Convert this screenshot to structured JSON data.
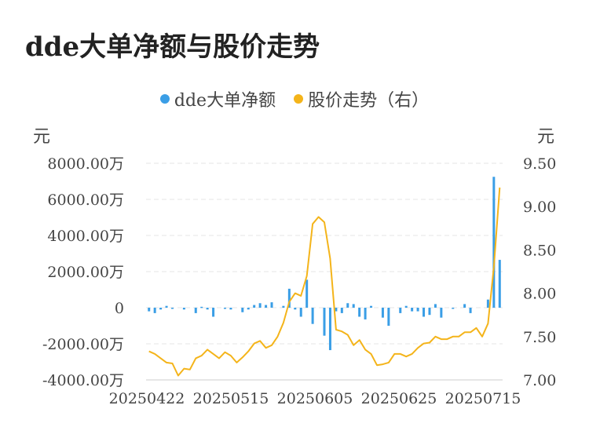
{
  "chart_data": {
    "type": "bar+line",
    "title": "dde大单净额与股价走势",
    "legend": [
      {
        "name": "dde大单净额",
        "color": "#3a9ee6"
      },
      {
        "name": "股价走势（右）",
        "color": "#f4b41a"
      }
    ],
    "left_axis": {
      "unit": "元",
      "ticks": [
        "8000.00万",
        "6000.00万",
        "4000.00万",
        "2000.00万",
        "0",
        "-2000.00万",
        "-4000.00万"
      ],
      "range": [
        -4000,
        8000
      ]
    },
    "right_axis": {
      "unit": "元",
      "ticks": [
        "9.50",
        "9.00",
        "8.50",
        "8.00",
        "7.50",
        "7.00"
      ],
      "range": [
        7.0,
        9.5
      ]
    },
    "x_ticks": [
      "20250422",
      "20250515",
      "20250605",
      "20250625",
      "20250715"
    ],
    "grid": true,
    "legend_position": "top",
    "series": [
      {
        "name": "dde大单净额",
        "type": "bar",
        "color": "#3a9ee6",
        "values": [
          -200,
          -300,
          -100,
          100,
          -50,
          0,
          -100,
          0,
          -300,
          50,
          -100,
          -500,
          0,
          -50,
          -100,
          0,
          -250,
          -100,
          150,
          250,
          150,
          300,
          0,
          100,
          1050,
          -100,
          -500,
          1550,
          -900,
          0,
          -1550,
          -2350,
          -200,
          -300,
          250,
          200,
          -500,
          -650,
          100,
          0,
          -550,
          -1000,
          0,
          -300,
          100,
          -200,
          -200,
          -500,
          -400,
          200,
          -550,
          0,
          -50,
          0,
          200,
          -300,
          0,
          0,
          450,
          7250,
          2650
        ]
      },
      {
        "name": "股价走势（右）",
        "type": "line",
        "color": "#f4b41a",
        "values": [
          7.33,
          7.3,
          7.25,
          7.2,
          7.19,
          7.05,
          7.13,
          7.12,
          7.25,
          7.28,
          7.35,
          7.3,
          7.25,
          7.32,
          7.28,
          7.2,
          7.26,
          7.33,
          7.42,
          7.45,
          7.37,
          7.4,
          7.5,
          7.66,
          7.9,
          8.0,
          7.97,
          8.2,
          8.8,
          8.88,
          8.82,
          8.4,
          7.58,
          7.56,
          7.52,
          7.4,
          7.46,
          7.35,
          7.3,
          7.17,
          7.18,
          7.2,
          7.3,
          7.3,
          7.27,
          7.3,
          7.37,
          7.42,
          7.43,
          7.5,
          7.47,
          7.47,
          7.5,
          7.5,
          7.55,
          7.55,
          7.6,
          7.5,
          7.65,
          8.3,
          9.22
        ]
      }
    ]
  }
}
